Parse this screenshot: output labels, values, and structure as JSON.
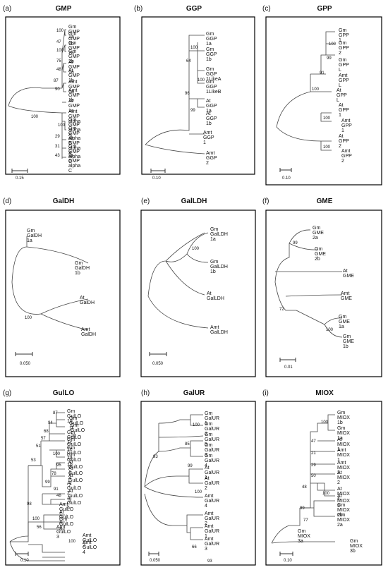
{
  "panels": [
    {
      "label": "(a)",
      "title": "GMP",
      "scale": "0.15",
      "leaves": [
        "Gm GMP 1a",
        "Gm GMP 1b",
        "Gm GMP 2a",
        "Gm GMP 2b",
        "At GMP 1a",
        "At GMP 1b",
        "Amt GMP 1a",
        "Amt GMP 1b",
        "At GMP 1c",
        "Amt GMP alpha",
        "Gm GMP alpha A",
        "Gm GMP alpha B",
        "At GMP alpha A",
        "Gm GMP alpha C",
        "At GMP alpha C"
      ],
      "bootstraps": [
        "100",
        "47",
        "100",
        "75",
        "48",
        "87",
        "90",
        "100",
        "100",
        "29",
        "31",
        "43"
      ]
    },
    {
      "label": "(b)",
      "title": "GGP",
      "scale": "0.10",
      "leaves": [
        "Gm GGP 1a",
        "Gm GGP 1b",
        "Gm GGP 1LikeA",
        "Gm GGP 1LikeB",
        "At GGP 1a",
        "At GGP 1b",
        "Amt GGP 1",
        "Amt GGP 2"
      ],
      "bootstraps": [
        "100",
        "64",
        "100",
        "96",
        "99"
      ]
    },
    {
      "label": "(c)",
      "title": "GPP",
      "scale": "0.10",
      "leaves": [
        "Gm GPP 1",
        "Gm GPP 2",
        "Gm GPP L",
        "Amt GPP L",
        "At GPP L",
        "At GPP 1",
        "Amt GPP 1",
        "At GPP 2",
        "Amt GPP 2"
      ],
      "bootstraps": [
        "100",
        "99",
        "91",
        "100",
        "100",
        "100"
      ]
    },
    {
      "label": "(d)",
      "title": "GalDH",
      "scale": "0.050",
      "leaves": [
        "Gm GalDH 1a",
        "Gm GalDH 1b",
        "At GalDH",
        "Amt GalDH"
      ],
      "bootstraps": [
        "100"
      ]
    },
    {
      "label": "(e)",
      "title": "GalLDH",
      "scale": "0.050",
      "leaves": [
        "Gm GalLDH 1a",
        "Gm GalLDH 1b",
        "At GalLDH",
        "Amt GalLDH"
      ],
      "bootstraps": [
        "100"
      ]
    },
    {
      "label": "(f)",
      "title": "GME",
      "scale": "0.01",
      "leaves": [
        "Gm GME 2a",
        "Gm GME 2b",
        "At GME",
        "Amt GME",
        "Gm GME 1a",
        "Gm GME 1b"
      ],
      "bootstraps": [
        "99",
        "72",
        "100"
      ]
    },
    {
      "label": "(g)",
      "title": "GulLO",
      "scale": "0.10",
      "leaves": [
        "Gm GulLO 1d",
        "Gm GulLO 1f",
        "Gm GulLO 1g",
        "Gm GulLO 1c",
        "Gm GulLO 1e",
        "Gm GulLO 1a",
        "Gm GulLO 1b",
        "At GulLO 1",
        "At GulLO 4",
        "At GulLO 7",
        "At GulLO 2",
        "At GulLO 5",
        "At GulLO 6",
        "Amt GulLO 1",
        "At GulLO 3",
        "Gm GulLO 3",
        "Amt GulLO 3",
        "Amt GulLO 2",
        "Amt GulLO 4"
      ],
      "bootstraps": [
        "87",
        "94",
        "68",
        "57",
        "51",
        "100",
        "95",
        "78",
        "99",
        "91",
        "48",
        "53",
        "98",
        "100",
        "56",
        "100"
      ]
    },
    {
      "label": "(h)",
      "title": "GalUR",
      "scale": "0.050",
      "leaves": [
        "Gm GalUR 1",
        "Gm GalUR 2",
        "Gm GalUR 5",
        "Gm GalUR 3",
        "Gm GalUR 4",
        "At GalUR 1",
        "At GalUR 2",
        "Amt GalUR 4",
        "Amt GalUR 2",
        "Amt GalUR 1",
        "Amt GalUR 3"
      ],
      "bootstraps": [
        "100",
        "85",
        "93",
        "99",
        "100",
        "66",
        "93"
      ]
    },
    {
      "label": "(i)",
      "title": "MIOX",
      "scale": "0.10",
      "leaves": [
        "Gm MIOX 1b",
        "Gm MIOX 1a",
        "At MIOX 1",
        "Amt MIOX 1",
        "Amt MIOX 2",
        "At MIOX 2",
        "At MIOX 4",
        "At MIOX 5",
        "Gm MIOX 2b",
        "Gm MIOX 2a",
        "Gm MIOX 3a",
        "Gm MIOX 3b"
      ],
      "bootstraps": [
        "100",
        "47",
        "21",
        "29",
        "50",
        "48",
        "100",
        "99",
        "77"
      ]
    }
  ]
}
